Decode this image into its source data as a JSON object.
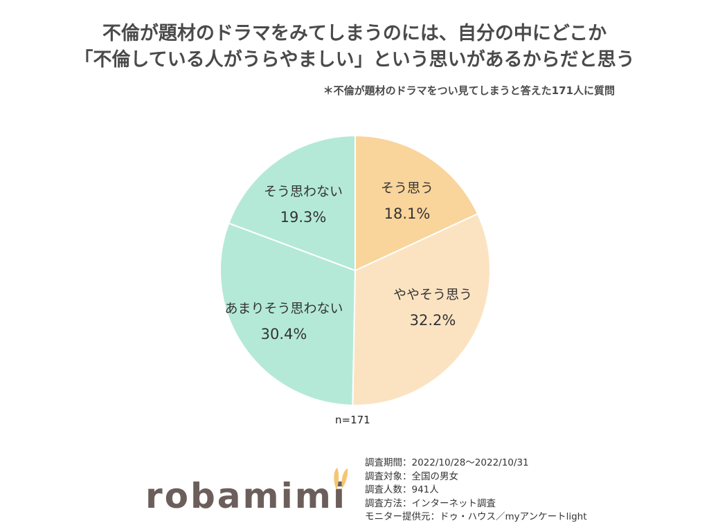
{
  "title_line1": "不倫が題材のドラマをみてしまうのには、自分の中にどこか",
  "title_line2": "「不倫している人がうらやましい」という思いがあるからだと思う",
  "subtitle": "＊不倫が題材のドラマをつい見てしまうと答えた171人に質問",
  "n_label": "n=171",
  "logo": "robamimi",
  "survey_info": [
    "調査期間：2022/10/28～2022/10/31",
    "調査対象：全国の男女",
    "調査人数：941人",
    "調査方法：インターネット調査",
    "モニター提供元：ドゥ・ハウス／myアンケートlight"
  ],
  "chart_data": {
    "type": "pie",
    "title": "不倫が題材のドラマをみてしまうのには、自分の中にどこか「不倫している人がうらやましい」という思いがあるからだと思う",
    "slices": [
      {
        "label": "そう思う",
        "value": 18.1,
        "display": "18.1%",
        "color": "#f9d49b"
      },
      {
        "label": "ややそう思う",
        "value": 32.2,
        "display": "32.2%",
        "color": "#fbe3c2"
      },
      {
        "label": "あまりそう思わない",
        "value": 30.4,
        "display": "30.4%",
        "color": "#b4e9d8"
      },
      {
        "label": "そう思わない",
        "value": 19.3,
        "display": "19.3%",
        "color": "#b4e9d8"
      }
    ],
    "n": 171
  }
}
